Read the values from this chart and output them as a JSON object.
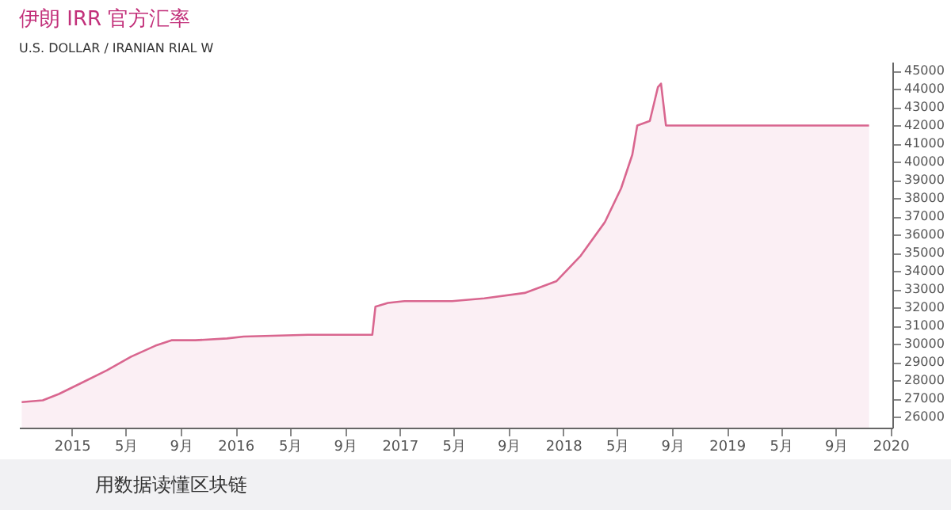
{
  "chart_data": {
    "type": "area",
    "title": "伊朗 IRR 官方汇率",
    "subtitle": "U.S. DOLLAR / IRANIAN RIAL  W",
    "x": [
      "2014-09-11",
      "2014-10-28",
      "2014-12-03",
      "2015-01-26",
      "2015-03-20",
      "2015-05-13",
      "2015-07-06",
      "2015-08-11",
      "2015-10-03",
      "2015-12-13",
      "2016-01-19",
      "2016-06-10",
      "2016-11-01",
      "2016-11-08",
      "2016-12-06",
      "2017-01-12",
      "2017-04-28",
      "2017-07-09",
      "2017-10-07",
      "2017-12-17",
      "2018-02-09",
      "2018-04-04",
      "2018-05-10",
      "2018-06-04",
      "2018-06-15",
      "2018-07-13",
      "2018-07-31",
      "2018-08-07",
      "2018-08-18",
      "2019-11-14"
    ],
    "series": [
      {
        "color": "#d9668f",
        "values": [
          26800,
          26900,
          27250,
          27900,
          28550,
          29300,
          29900,
          30200,
          30200,
          30300,
          30400,
          30500,
          30500,
          32050,
          32250,
          32350,
          32350,
          32500,
          32800,
          33450,
          34850,
          36700,
          38550,
          40400,
          42000,
          42250,
          44100,
          44300,
          42000,
          42000
        ]
      }
    ],
    "xlim": [
      "2014-09-05",
      "2020-01-05"
    ],
    "xticks": [
      {
        "value": "2015-01-01",
        "label": "2015"
      },
      {
        "value": "2015-05-01",
        "label": "5月"
      },
      {
        "value": "2015-09-01",
        "label": "9月"
      },
      {
        "value": "2016-01-01",
        "label": "2016"
      },
      {
        "value": "2016-05-01",
        "label": "5月"
      },
      {
        "value": "2016-09-01",
        "label": "9月"
      },
      {
        "value": "2017-01-01",
        "label": "2017"
      },
      {
        "value": "2017-05-01",
        "label": "5月"
      },
      {
        "value": "2017-09-01",
        "label": "9月"
      },
      {
        "value": "2018-01-01",
        "label": "2018"
      },
      {
        "value": "2018-05-01",
        "label": "5月"
      },
      {
        "value": "2018-09-01",
        "label": "9月"
      },
      {
        "value": "2019-01-01",
        "label": "2019"
      },
      {
        "value": "2019-05-01",
        "label": "5月"
      },
      {
        "value": "2019-09-01",
        "label": "9月"
      },
      {
        "value": "2020-01-01",
        "label": "2020"
      }
    ],
    "ylim": [
      25400,
      45500
    ],
    "yticks": [
      26000,
      27000,
      28000,
      29000,
      30000,
      31000,
      32000,
      33000,
      34000,
      35000,
      36000,
      37000,
      38000,
      39000,
      40000,
      41000,
      42000,
      43000,
      44000,
      45000
    ],
    "grid": false,
    "annotations": [
      "用数据读懂区块链"
    ]
  }
}
